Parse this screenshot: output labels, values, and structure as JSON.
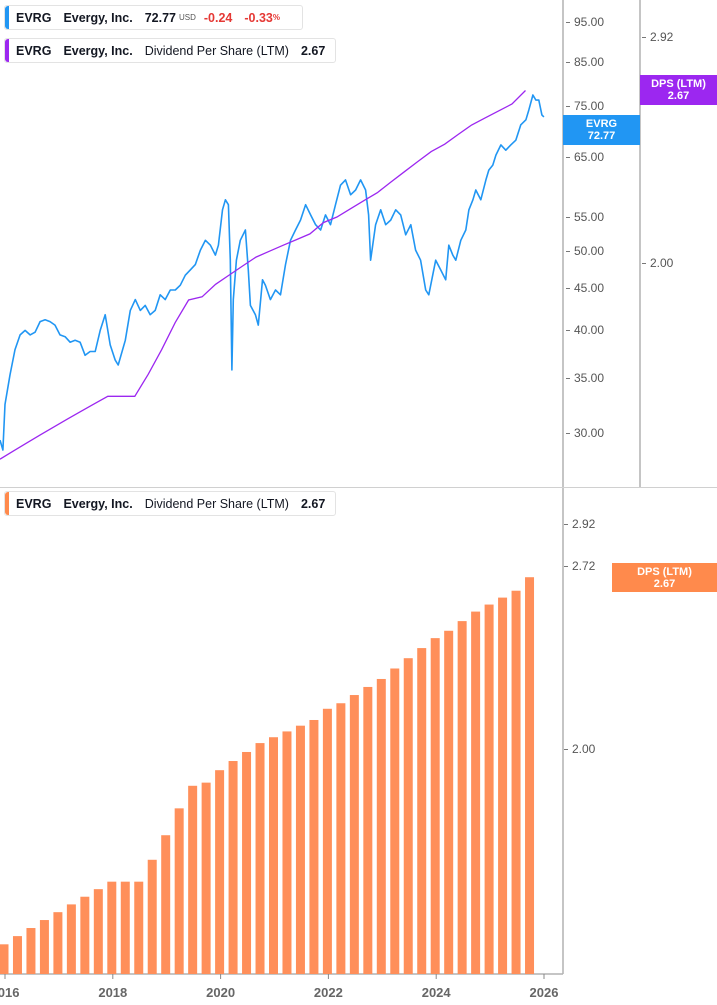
{
  "legend_price": {
    "symbol": "EVRG",
    "name": "Evergy, Inc.",
    "price": "72.77",
    "currency": "USD",
    "change": "-0.24",
    "change_pct": "-0.33",
    "pct_sign": "%"
  },
  "legend_dps_top": {
    "symbol": "EVRG",
    "name": "Evergy, Inc.",
    "metric": "Dividend Per Share (LTM)",
    "value": "2.67"
  },
  "legend_dps_bottom": {
    "symbol": "EVRG",
    "name": "Evergy, Inc.",
    "metric": "Dividend Per Share (LTM)",
    "value": "2.67"
  },
  "badges": {
    "price": {
      "label": "EVRG",
      "value": "72.77",
      "color": "#2196f3"
    },
    "dps_top": {
      "label": "DPS (LTM)",
      "value": "2.67",
      "color": "#9c27f0"
    },
    "dps_bottom": {
      "label": "DPS (LTM)",
      "value": "2.67",
      "color": "#ff8a4c"
    }
  },
  "chart_data": [
    {
      "type": "line",
      "scale": "log",
      "series": [
        {
          "name": "EVRG",
          "color": "#2196f3",
          "axis": "price"
        },
        {
          "name": "DPS (LTM)",
          "color": "#9c27f0",
          "axis": "dps"
        }
      ],
      "price_ticks": [
        "95.00",
        "85.00",
        "75.00",
        "65.00",
        "55.00",
        "50.00",
        "45.00",
        "40.00",
        "35.00",
        "30.00"
      ],
      "dps_ticks": [
        "2.92",
        "2.00"
      ],
      "price_points": [
        [
          "2015-11-28",
          29.4
        ],
        [
          "2015-12-18",
          28.6
        ],
        [
          "2016-01-01",
          32.5
        ],
        [
          "2016-02-04",
          35.3
        ],
        [
          "2016-03-09",
          37.9
        ],
        [
          "2016-04-12",
          39.5
        ],
        [
          "2016-05-16",
          40.0
        ],
        [
          "2016-06-19",
          39.5
        ],
        [
          "2016-07-23",
          39.8
        ],
        [
          "2016-08-26",
          41.0
        ],
        [
          "2016-09-29",
          41.2
        ],
        [
          "2016-11-01",
          41.0
        ],
        [
          "2016-12-05",
          40.6
        ],
        [
          "2017-01-08",
          39.5
        ],
        [
          "2017-02-11",
          39.3
        ],
        [
          "2017-03-17",
          38.7
        ],
        [
          "2017-04-20",
          38.9
        ],
        [
          "2017-05-24",
          38.7
        ],
        [
          "2017-06-27",
          37.3
        ],
        [
          "2017-07-31",
          37.7
        ],
        [
          "2017-09-03",
          37.7
        ],
        [
          "2017-10-07",
          40.0
        ],
        [
          "2017-11-10",
          41.8
        ],
        [
          "2017-12-14",
          38.4
        ],
        [
          "2018-01-17",
          36.8
        ],
        [
          "2018-02-06",
          36.3
        ],
        [
          "2018-03-26",
          38.9
        ],
        [
          "2018-04-29",
          42.3
        ],
        [
          "2018-06-02",
          43.6
        ],
        [
          "2018-07-06",
          42.3
        ],
        [
          "2018-08-08",
          42.9
        ],
        [
          "2018-09-11",
          41.8
        ],
        [
          "2018-10-15",
          42.3
        ],
        [
          "2018-11-18",
          44.2
        ],
        [
          "2018-12-22",
          43.6
        ],
        [
          "2019-01-25",
          44.8
        ],
        [
          "2019-02-28",
          44.8
        ],
        [
          "2019-04-03",
          45.4
        ],
        [
          "2019-05-07",
          46.7
        ],
        [
          "2019-06-10",
          47.4
        ],
        [
          "2019-07-14",
          48.1
        ],
        [
          "2019-08-17",
          50.1
        ],
        [
          "2019-09-20",
          51.5
        ],
        [
          "2019-10-24",
          50.8
        ],
        [
          "2019-11-27",
          49.4
        ],
        [
          "2019-12-17",
          50.8
        ],
        [
          "2020-01-14",
          56.1
        ],
        [
          "2020-02-03",
          57.7
        ],
        [
          "2020-02-23",
          56.9
        ],
        [
          "2020-03-07",
          48.7
        ],
        [
          "2020-03-18",
          35.8
        ],
        [
          "2020-03-27",
          43.6
        ],
        [
          "2020-04-17",
          48.7
        ],
        [
          "2020-05-14",
          51.5
        ],
        [
          "2020-06-17",
          53.0
        ],
        [
          "2020-07-07",
          47.4
        ],
        [
          "2020-07-21",
          42.9
        ],
        [
          "2020-08-24",
          41.8
        ],
        [
          "2020-09-13",
          40.6
        ],
        [
          "2020-10-11",
          46.1
        ],
        [
          "2020-10-31",
          45.4
        ],
        [
          "2020-12-04",
          43.6
        ],
        [
          "2021-01-07",
          44.8
        ],
        [
          "2021-02-10",
          44.2
        ],
        [
          "2021-03-16",
          48.1
        ],
        [
          "2021-04-19",
          51.5
        ],
        [
          "2021-05-23",
          53.0
        ],
        [
          "2021-06-26",
          54.5
        ],
        [
          "2021-07-30",
          56.9
        ],
        [
          "2021-09-02",
          55.3
        ],
        [
          "2021-10-06",
          53.8
        ],
        [
          "2021-11-09",
          53.0
        ],
        [
          "2021-12-12",
          55.3
        ],
        [
          "2022-01-15",
          53.8
        ],
        [
          "2022-02-18",
          56.9
        ],
        [
          "2022-03-24",
          60.1
        ],
        [
          "2022-04-27",
          61.0
        ],
        [
          "2022-05-31",
          58.5
        ],
        [
          "2022-07-04",
          59.3
        ],
        [
          "2022-08-07",
          61.0
        ],
        [
          "2022-09-10",
          59.3
        ],
        [
          "2022-09-30",
          55.3
        ],
        [
          "2022-10-14",
          48.7
        ],
        [
          "2022-11-17",
          53.8
        ],
        [
          "2022-12-21",
          56.1
        ],
        [
          "2023-01-24",
          53.8
        ],
        [
          "2023-02-27",
          54.5
        ],
        [
          "2023-04-02",
          56.1
        ],
        [
          "2023-05-06",
          55.3
        ],
        [
          "2023-06-09",
          52.3
        ],
        [
          "2023-07-13",
          53.8
        ],
        [
          "2023-08-15",
          50.1
        ],
        [
          "2023-09-18",
          48.7
        ],
        [
          "2023-10-22",
          44.8
        ],
        [
          "2023-11-12",
          44.2
        ],
        [
          "2023-12-09",
          46.7
        ],
        [
          "2023-12-29",
          48.7
        ],
        [
          "2024-02-01",
          47.4
        ],
        [
          "2024-03-06",
          46.1
        ],
        [
          "2024-03-27",
          50.8
        ],
        [
          "2024-04-23",
          49.4
        ],
        [
          "2024-05-13",
          48.7
        ],
        [
          "2024-06-16",
          51.5
        ],
        [
          "2024-07-20",
          53.0
        ],
        [
          "2024-08-10",
          56.1
        ],
        [
          "2024-09-06",
          57.7
        ],
        [
          "2024-09-26",
          59.3
        ],
        [
          "2024-10-30",
          57.7
        ],
        [
          "2024-12-03",
          61.0
        ],
        [
          "2024-12-23",
          62.7
        ],
        [
          "2025-01-19",
          63.6
        ],
        [
          "2025-02-09",
          65.4
        ],
        [
          "2025-03-15",
          67.3
        ],
        [
          "2025-04-17",
          66.3
        ],
        [
          "2025-05-21",
          67.3
        ],
        [
          "2025-06-24",
          68.2
        ],
        [
          "2025-07-28",
          71.2
        ],
        [
          "2025-08-31",
          72.2
        ],
        [
          "2025-09-20",
          74.2
        ],
        [
          "2025-10-18",
          77.4
        ],
        [
          "2025-11-07",
          76.3
        ],
        [
          "2025-11-27",
          76.3
        ],
        [
          "2025-12-18",
          73.2
        ],
        [
          "2025-12-31",
          72.77
        ]
      ]
    },
    {
      "type": "bar",
      "scale": "log",
      "series": [
        {
          "name": "DPS (LTM)",
          "color": "#ff8f5a"
        }
      ],
      "yticks": [
        "2.92",
        "2.72",
        "2.00"
      ],
      "xticks": [
        "2016",
        "2018",
        "2020",
        "2022",
        "2024",
        "2026"
      ],
      "categories": [
        "2016-Q1",
        "2016-Q2",
        "2016-Q3",
        "2016-Q4",
        "2017-Q1",
        "2017-Q2",
        "2017-Q3",
        "2017-Q4",
        "2018-Q1",
        "2018-Q2",
        "2018-Q3",
        "2018-Q4",
        "2019-Q1",
        "2019-Q2",
        "2019-Q3",
        "2019-Q4",
        "2020-Q1",
        "2020-Q2",
        "2020-Q3",
        "2020-Q4",
        "2021-Q1",
        "2021-Q2",
        "2021-Q3",
        "2021-Q4",
        "2022-Q1",
        "2022-Q2",
        "2022-Q3",
        "2022-Q4",
        "2023-Q1",
        "2023-Q2",
        "2023-Q3",
        "2023-Q4",
        "2024-Q1",
        "2024-Q2",
        "2024-Q3",
        "2024-Q4",
        "2025-Q1",
        "2025-Q2",
        "2025-Q3",
        "2025-Q4"
      ],
      "values": [
        1.44,
        1.46,
        1.48,
        1.5,
        1.52,
        1.54,
        1.56,
        1.58,
        1.6,
        1.6,
        1.6,
        1.66,
        1.73,
        1.81,
        1.88,
        1.89,
        1.93,
        1.96,
        1.99,
        2.02,
        2.04,
        2.06,
        2.08,
        2.1,
        2.14,
        2.16,
        2.19,
        2.22,
        2.25,
        2.29,
        2.33,
        2.37,
        2.41,
        2.44,
        2.48,
        2.52,
        2.55,
        2.58,
        2.61,
        2.67
      ]
    }
  ]
}
